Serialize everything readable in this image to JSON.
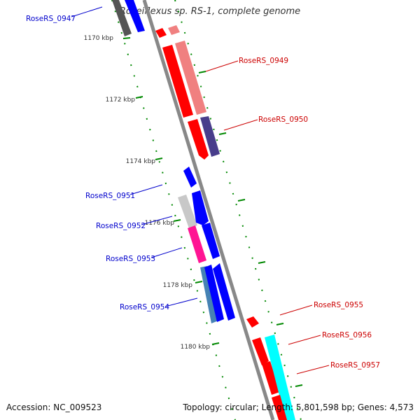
{
  "title": "Roseiflexus sp. RS-1, complete genome",
  "footer": {
    "accession": "Accession: NC_009523",
    "summary": "Topology: circular; Length: 5,801,598 bp; Genes: 4,573"
  },
  "colors": {
    "backbone": "#888888",
    "tick": "#008800",
    "forward_label": "#0000cc",
    "reverse_label": "#cc0000"
  },
  "scale_labels": [
    {
      "kbp": 1170,
      "text": "1170 kbp"
    },
    {
      "kbp": 1172,
      "text": "1172 kbp"
    },
    {
      "kbp": 1174,
      "text": "1174 kbp"
    },
    {
      "kbp": 1176,
      "text": "1176 kbp"
    },
    {
      "kbp": 1178,
      "text": "1178 kbp"
    },
    {
      "kbp": 1180,
      "text": "1180 kbp"
    }
  ],
  "gene_labels": [
    {
      "text": "RoseRS_0947",
      "strand": "left"
    },
    {
      "text": "RoseRS_0949",
      "strand": "right"
    },
    {
      "text": "RoseRS_0950",
      "strand": "right"
    },
    {
      "text": "RoseRS_0951",
      "strand": "left"
    },
    {
      "text": "RoseRS_0952",
      "strand": "left"
    },
    {
      "text": "RoseRS_0953",
      "strand": "left"
    },
    {
      "text": "RoseRS_0954",
      "strand": "left"
    },
    {
      "text": "RoseRS_0955",
      "strand": "right"
    },
    {
      "text": "RoseRS_0956",
      "strand": "right"
    },
    {
      "text": "RoseRS_0957",
      "strand": "right"
    }
  ]
}
